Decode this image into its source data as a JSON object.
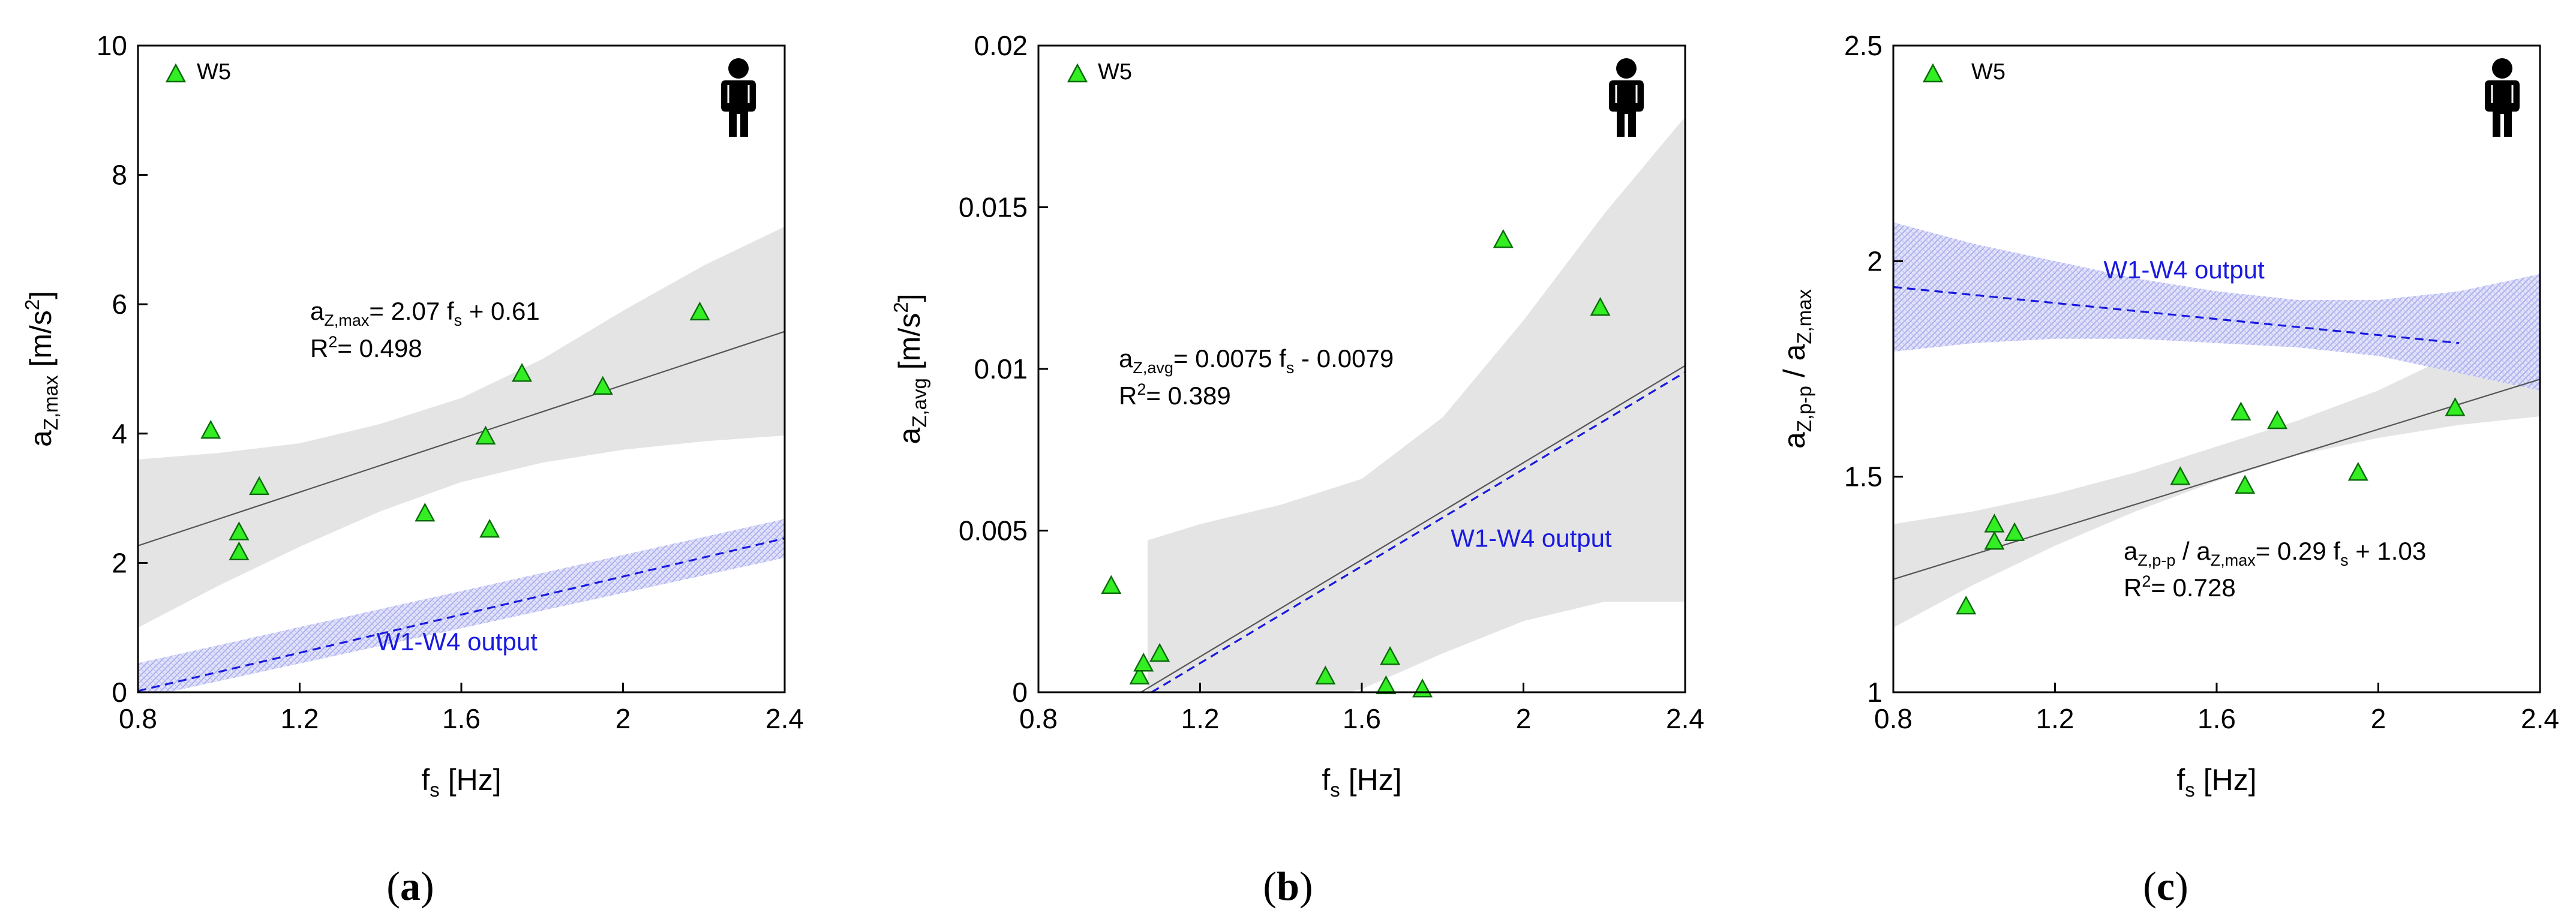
{
  "chart_data": [
    {
      "panel": "(a)",
      "panel_letter": "a",
      "type": "scatter",
      "series_name": "W5",
      "xlabel_main": "f",
      "xlabel_sub": "s",
      "xlabel_unit": " [Hz]",
      "ylabel_main": "a",
      "ylabel_sub": "Z,max",
      "ylabel_unit": " [m/s",
      "ylabel_sup": "2",
      "ylabel_close": "]",
      "xlim": [
        0.8,
        2.4
      ],
      "ylim": [
        0,
        10
      ],
      "x_ticks": [
        0.8,
        1.2,
        1.6,
        2,
        2.4
      ],
      "x_tick_labels": [
        "0.8",
        "1.2",
        "1.6",
        "2",
        "2.4"
      ],
      "y_ticks": [
        0,
        2,
        4,
        6,
        8,
        10
      ],
      "y_tick_labels": [
        "0",
        "2",
        "4",
        "6",
        "8",
        "10"
      ],
      "points": [
        {
          "x": 0.98,
          "y": 4.05
        },
        {
          "x": 1.05,
          "y": 2.48
        },
        {
          "x": 1.05,
          "y": 2.17
        },
        {
          "x": 1.1,
          "y": 3.18
        },
        {
          "x": 1.51,
          "y": 2.77
        },
        {
          "x": 1.66,
          "y": 3.96
        },
        {
          "x": 1.67,
          "y": 2.52
        },
        {
          "x": 1.75,
          "y": 4.93
        },
        {
          "x": 1.95,
          "y": 4.73
        },
        {
          "x": 2.19,
          "y": 5.88
        }
      ],
      "fit": {
        "slope": 2.07,
        "intercept": 0.61,
        "x_range": [
          0.8,
          2.4
        ]
      },
      "conf_band": {
        "x": [
          0.8,
          1.0,
          1.2,
          1.4,
          1.6,
          1.8,
          2.0,
          2.2,
          2.4
        ],
        "upper": [
          3.6,
          3.7,
          3.85,
          4.15,
          4.55,
          5.15,
          5.9,
          6.6,
          7.2
        ],
        "lower": [
          1.0,
          1.65,
          2.25,
          2.8,
          3.25,
          3.55,
          3.75,
          3.88,
          3.97
        ]
      },
      "equation_main": "a",
      "equation_sub": "Z,max",
      "equation_rhs_1": "= 2.07 f",
      "equation_rhs_sub": "s",
      "equation_rhs_2": " + 0.61",
      "r2_text": "= 0.498",
      "ref_line": {
        "x": [
          0.8,
          2.4
        ],
        "y": [
          0.02,
          2.38
        ]
      },
      "ref_band": {
        "x": [
          0.8,
          2.4
        ],
        "upper": [
          0.45,
          2.68
        ],
        "lower": [
          -0.1,
          2.08
        ]
      },
      "ref_label": "W1-W4 output",
      "ref_label_pos": {
        "x": 1.39,
        "y": 0.65
      }
    },
    {
      "panel": "(b)",
      "panel_letter": "b",
      "type": "scatter",
      "series_name": "W5",
      "xlabel_main": "f",
      "xlabel_sub": "s",
      "xlabel_unit": " [Hz]",
      "ylabel_main": "a",
      "ylabel_sub": "Z,avg",
      "ylabel_unit": " [m/s",
      "ylabel_sup": "2",
      "ylabel_close": "]",
      "xlim": [
        0.8,
        2.4
      ],
      "ylim": [
        0,
        0.02
      ],
      "x_ticks": [
        0.8,
        1.2,
        1.6,
        2,
        2.4
      ],
      "x_tick_labels": [
        "0.8",
        "1.2",
        "1.6",
        "2",
        "2.4"
      ],
      "y_ticks": [
        0,
        0.005,
        0.01,
        0.015,
        0.02
      ],
      "y_tick_labels": [
        "0",
        "0.005",
        "0.01",
        "0.015",
        "0.02"
      ],
      "points": [
        {
          "x": 0.98,
          "y": 0.0033
        },
        {
          "x": 1.05,
          "y": 0.0005
        },
        {
          "x": 1.06,
          "y": 0.0009
        },
        {
          "x": 1.1,
          "y": 0.0012
        },
        {
          "x": 1.51,
          "y": 0.0005
        },
        {
          "x": 1.66,
          "y": 0.0002
        },
        {
          "x": 1.67,
          "y": 0.0011
        },
        {
          "x": 1.75,
          "y": 0.0001
        },
        {
          "x": 1.95,
          "y": 0.014
        },
        {
          "x": 2.19,
          "y": 0.0119
        }
      ],
      "fit": {
        "slope": 0.0075,
        "intercept": -0.0079,
        "x_range": [
          1.053,
          2.4
        ]
      },
      "conf_band": {
        "x": [
          1.07,
          1.2,
          1.4,
          1.6,
          1.8,
          2.0,
          2.2,
          2.4
        ],
        "upper": [
          0.0047,
          0.0052,
          0.0058,
          0.0066,
          0.0085,
          0.0115,
          0.0148,
          0.0178
        ],
        "lower": [
          -0.0005,
          -0.0007,
          -0.0005,
          0.0001,
          0.0012,
          0.0022,
          0.0028,
          0.0028
        ]
      },
      "equation_main": "a",
      "equation_sub": "Z,avg",
      "equation_rhs_1": "= 0.0075 f",
      "equation_rhs_sub": "s",
      "equation_rhs_2": " - 0.0079",
      "r2_text": "= 0.389",
      "ref_line": {
        "x": [
          1.08,
          2.4
        ],
        "y": [
          0.0,
          0.0099
        ]
      },
      "ref_band": null,
      "ref_label": "W1-W4 output",
      "ref_label_pos": {
        "x": 1.82,
        "y": 0.0045
      }
    },
    {
      "panel": "(c)",
      "panel_letter": "c",
      "type": "scatter",
      "series_name": "W5",
      "xlabel_main": "f",
      "xlabel_sub": "s",
      "xlabel_unit": " [Hz]",
      "ylabel_main": "a",
      "ylabel_sub": "Z,p-p",
      "ylabel_mid": " / a",
      "ylabel_sub2": "Z,max",
      "xlim": [
        0.8,
        2.4
      ],
      "ylim": [
        1,
        2.5
      ],
      "x_ticks": [
        0.8,
        1.2,
        1.6,
        2,
        2.4
      ],
      "x_tick_labels": [
        "0.8",
        "1.2",
        "1.6",
        "2",
        "2.4"
      ],
      "y_ticks": [
        1,
        1.5,
        2,
        2.5
      ],
      "y_tick_labels": [
        "1",
        "1.5",
        "2",
        "2.5"
      ],
      "points": [
        {
          "x": 0.98,
          "y": 1.2
        },
        {
          "x": 1.05,
          "y": 1.39
        },
        {
          "x": 1.05,
          "y": 1.35
        },
        {
          "x": 1.1,
          "y": 1.37
        },
        {
          "x": 1.51,
          "y": 1.5
        },
        {
          "x": 1.66,
          "y": 1.65
        },
        {
          "x": 1.67,
          "y": 1.48
        },
        {
          "x": 1.75,
          "y": 1.63
        },
        {
          "x": 1.95,
          "y": 1.51
        },
        {
          "x": 2.19,
          "y": 1.66
        }
      ],
      "fit": {
        "slope": 0.29,
        "intercept": 1.03,
        "x_range": [
          0.8,
          2.4
        ]
      },
      "conf_band": {
        "x": [
          0.8,
          1.0,
          1.2,
          1.4,
          1.6,
          1.8,
          2.0,
          2.2,
          2.4
        ],
        "upper": [
          1.39,
          1.42,
          1.46,
          1.51,
          1.57,
          1.63,
          1.7,
          1.79,
          1.89
        ],
        "lower": [
          1.15,
          1.25,
          1.34,
          1.42,
          1.49,
          1.55,
          1.59,
          1.62,
          1.64
        ]
      },
      "equation_main": "a",
      "equation_sub": "Z,p-p",
      "equation_mid": " / a",
      "equation_sub2": "Z,max",
      "equation_rhs_1": "= 0.29 f",
      "equation_rhs_sub": "s",
      "equation_rhs_2": " + 1.03",
      "r2_text": "= 0.728",
      "ref_line": {
        "x": [
          0.8,
          2.2
        ],
        "y": [
          1.94,
          1.81
        ]
      },
      "ref_band": {
        "x": [
          0.8,
          1.0,
          1.2,
          1.4,
          1.6,
          1.8,
          2.0,
          2.2,
          2.4
        ],
        "upper": [
          2.09,
          2.04,
          2.0,
          1.96,
          1.93,
          1.91,
          1.91,
          1.93,
          1.97
        ],
        "lower": [
          1.79,
          1.81,
          1.82,
          1.82,
          1.81,
          1.8,
          1.78,
          1.74,
          1.7
        ]
      },
      "ref_label": "W1-W4 output",
      "ref_label_pos": {
        "x": 1.32,
        "y": 1.96
      }
    }
  ],
  "styles": {
    "marker_fill": "#33ee22",
    "marker_stroke": "#0a6a0a",
    "band_fill": "#e4e4e4",
    "ref_color": "#1a1adf",
    "ref_band_fill": "#c9cbf3",
    "fit_color": "#555555"
  }
}
